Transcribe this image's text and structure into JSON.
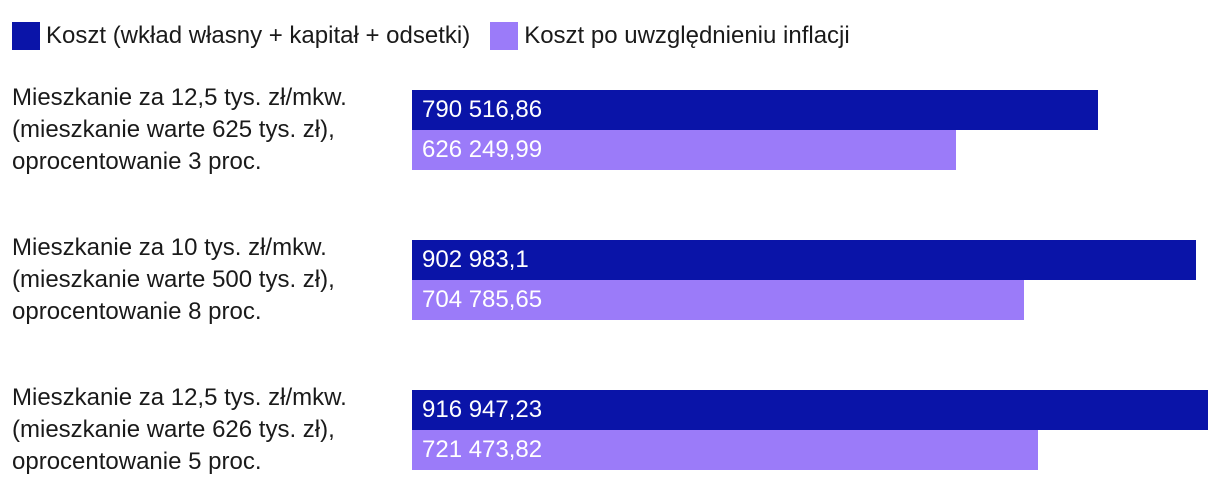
{
  "legend": [
    {
      "label": "Koszt (wkład własny + kapitał + odsetki)",
      "color": "#0a14a8"
    },
    {
      "label": "Koszt po uwzględnieniu inflacji",
      "color": "#9b7bf9"
    }
  ],
  "chart_data": {
    "type": "bar",
    "orientation": "horizontal",
    "categories": [
      "Mieszkanie za 12,5 tys. zł/mkw.\n(mieszkanie warte 625 tys. zł),\noprocentowanie 3 proc.",
      "Mieszkanie za 10 tys. zł/mkw.\n(mieszkanie warte 500 tys. zł),\noprocentowanie 8 proc.",
      "Mieszkanie za 12,5 tys. zł/mkw.\n(mieszkanie warte 626 tys. zł),\noprocentowanie 5 proc."
    ],
    "series": [
      {
        "name": "Koszt (wkład własny + kapitał + odsetki)",
        "color": "#0a14a8",
        "values": [
          790516.86,
          902983.1,
          916947.23
        ],
        "labels": [
          "790 516,86",
          "902 983,1",
          "916 947,23"
        ]
      },
      {
        "name": "Koszt po uwzględnieniu inflacji",
        "color": "#9b7bf9",
        "values": [
          626249.99,
          704785.65,
          721473.82
        ],
        "labels": [
          "626 249,99",
          "704 785,65",
          "721 473,82"
        ]
      }
    ],
    "xlim": [
      0,
      916947.23
    ],
    "grid": false,
    "legend_position": "top-left"
  }
}
